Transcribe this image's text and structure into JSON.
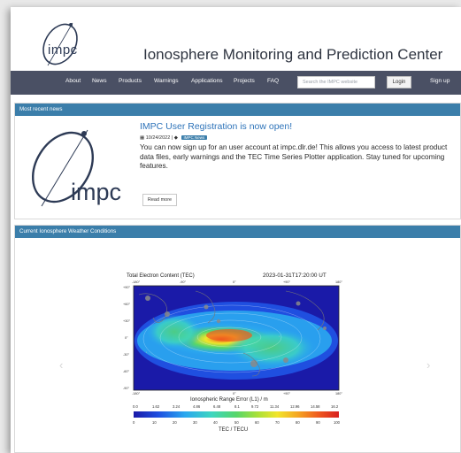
{
  "header": {
    "logo_text": "impc",
    "site_title": "Ionosphere Monitoring and Prediction Center"
  },
  "nav": {
    "items": [
      "About",
      "News",
      "Products",
      "Warnings",
      "Applications",
      "Projects",
      "FAQ"
    ],
    "search_placeholder": "Search the IMPC website",
    "login_label": "Login",
    "signup_label": "Sign up"
  },
  "news": {
    "section_title": "Most recent news",
    "logo_text": "impc",
    "headline": "IMPC User Registration is now open!",
    "date": "10/24/2022",
    "tag": "IMPC News",
    "body": "You can now sign up for an user account at impc.dlr.de! This allows you access to latest product data files, early warnings and the TEC Time Series Plotter application. Stay tuned for upcoming features.",
    "read_more_label": "Read more"
  },
  "weather": {
    "section_title": "Current Ionosphere Weather Conditions",
    "prev_symbol": "‹",
    "next_symbol": "›",
    "map": {
      "title": "Total Electron Content (TEC)",
      "timestamp": "2023-01-31T17:20:00 UT",
      "lon_ticks": [
        "-180°",
        "-90°",
        "0°",
        "+90°",
        "180°"
      ],
      "lat_ticks": [
        "+90°",
        "+60°",
        "+30°",
        "0°",
        "-30°",
        "-60°",
        "-90°"
      ],
      "range_label": "Ionospheric Range Error (L1) / m",
      "range_ticks": [
        "0.0",
        "1.62",
        "3.24",
        "4.86",
        "6.48",
        "8.1",
        "9.72",
        "11.34",
        "12.96",
        "14.58",
        "16.2"
      ],
      "tec_ticks": [
        "0",
        "10",
        "20",
        "30",
        "40",
        "50",
        "60",
        "70",
        "80",
        "90",
        "100"
      ],
      "tec_label": "TEC / TECU",
      "colors": {
        "scale": [
          "#1a1aa8",
          "#1f4fe0",
          "#2aa7ef",
          "#3ed6c0",
          "#56d66a",
          "#a6e03a",
          "#f2e52b",
          "#f5a623",
          "#ef5a1f",
          "#d81f1f"
        ]
      }
    }
  }
}
